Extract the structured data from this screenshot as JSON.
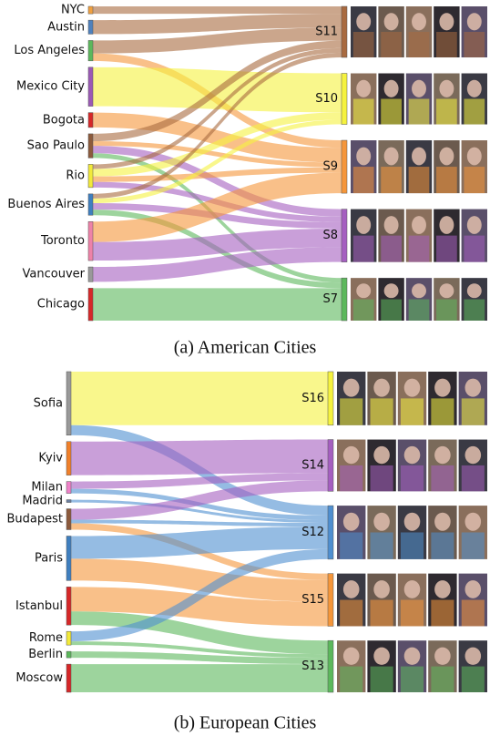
{
  "figures": [
    {
      "caption": "(a) American Cities",
      "sources": [
        {
          "name": "NYC",
          "color": "#f0a040"
        },
        {
          "name": "Austin",
          "color": "#4f81bd"
        },
        {
          "name": "Los Angeles",
          "color": "#5cb85c"
        },
        {
          "name": "Mexico City",
          "color": "#9b59b6"
        },
        {
          "name": "Bogota",
          "color": "#d62728"
        },
        {
          "name": "Sao Paulo",
          "color": "#8c5a3c"
        },
        {
          "name": "Rio",
          "color": "#f2e93a"
        },
        {
          "name": "Buenos Aires",
          "color": "#3f7fbf"
        },
        {
          "name": "Toronto",
          "color": "#ee82a8"
        },
        {
          "name": "Vancouver",
          "color": "#999999"
        },
        {
          "name": "Chicago",
          "color": "#d62728"
        }
      ],
      "targets": [
        {
          "name": "S11",
          "color": "#a86a40"
        },
        {
          "name": "S10",
          "color": "#f5f23f"
        },
        {
          "name": "S9",
          "color": "#f5963a"
        },
        {
          "name": "S8",
          "color": "#a55fc0"
        },
        {
          "name": "S7",
          "color": "#5cb85c"
        }
      ],
      "links": [
        {
          "source": 0,
          "target": 0,
          "value": 8
        },
        {
          "source": 1,
          "target": 0,
          "value": 15
        },
        {
          "source": 2,
          "target": 0,
          "value": 14
        },
        {
          "source": 2,
          "target": 2,
          "value": 8
        },
        {
          "source": 3,
          "target": 1,
          "value": 42
        },
        {
          "source": 4,
          "target": 2,
          "value": 16
        },
        {
          "source": 5,
          "target": 0,
          "value": 8
        },
        {
          "source": 5,
          "target": 2,
          "value": 5
        },
        {
          "source": 5,
          "target": 3,
          "value": 8
        },
        {
          "source": 5,
          "target": 4,
          "value": 5
        },
        {
          "source": 6,
          "target": 0,
          "value": 5
        },
        {
          "source": 6,
          "target": 1,
          "value": 8
        },
        {
          "source": 6,
          "target": 2,
          "value": 6
        },
        {
          "source": 6,
          "target": 3,
          "value": 6
        },
        {
          "source": 7,
          "target": 0,
          "value": 5
        },
        {
          "source": 7,
          "target": 1,
          "value": 5
        },
        {
          "source": 7,
          "target": 3,
          "value": 7
        },
        {
          "source": 7,
          "target": 4,
          "value": 6
        },
        {
          "source": 8,
          "target": 2,
          "value": 22
        },
        {
          "source": 8,
          "target": 3,
          "value": 20
        },
        {
          "source": 9,
          "target": 3,
          "value": 16
        },
        {
          "source": 10,
          "target": 4,
          "value": 35
        }
      ]
    },
    {
      "caption": "(b) European Cities",
      "sources": [
        {
          "name": "Sofia",
          "color": "#999999"
        },
        {
          "name": "Kyiv",
          "color": "#f0802a"
        },
        {
          "name": "Milan",
          "color": "#ee82c8"
        },
        {
          "name": "Madrid",
          "color": "#6a7fa0"
        },
        {
          "name": "Budapest",
          "color": "#8c5a3c"
        },
        {
          "name": "Paris",
          "color": "#3f7fbf"
        },
        {
          "name": "Istanbul",
          "color": "#d62728"
        },
        {
          "name": "Rome",
          "color": "#f2e93a"
        },
        {
          "name": "Berlin",
          "color": "#5cb85c"
        },
        {
          "name": "Moscow",
          "color": "#d62728"
        }
      ],
      "targets": [
        {
          "name": "S16",
          "color": "#f5f23f"
        },
        {
          "name": "S14",
          "color": "#a55fc0"
        },
        {
          "name": "S12",
          "color": "#4f8fd0"
        },
        {
          "name": "S15",
          "color": "#f5963a"
        },
        {
          "name": "S13",
          "color": "#5cb85c"
        }
      ],
      "links": [
        {
          "source": 0,
          "target": 0,
          "value": 59
        },
        {
          "source": 0,
          "target": 2,
          "value": 11
        },
        {
          "source": 1,
          "target": 1,
          "value": 37
        },
        {
          "source": 2,
          "target": 1,
          "value": 8
        },
        {
          "source": 2,
          "target": 2,
          "value": 5
        },
        {
          "source": 3,
          "target": 2,
          "value": 3
        },
        {
          "source": 4,
          "target": 1,
          "value": 12
        },
        {
          "source": 4,
          "target": 2,
          "value": 4
        },
        {
          "source": 4,
          "target": 3,
          "value": 7
        },
        {
          "source": 5,
          "target": 2,
          "value": 25
        },
        {
          "source": 5,
          "target": 3,
          "value": 24
        },
        {
          "source": 6,
          "target": 3,
          "value": 27
        },
        {
          "source": 6,
          "target": 4,
          "value": 15
        },
        {
          "source": 7,
          "target": 2,
          "value": 11
        },
        {
          "source": 7,
          "target": 4,
          "value": 4
        },
        {
          "source": 8,
          "target": 4,
          "value": 7
        },
        {
          "source": 9,
          "target": 4,
          "value": 31
        }
      ]
    }
  ]
}
